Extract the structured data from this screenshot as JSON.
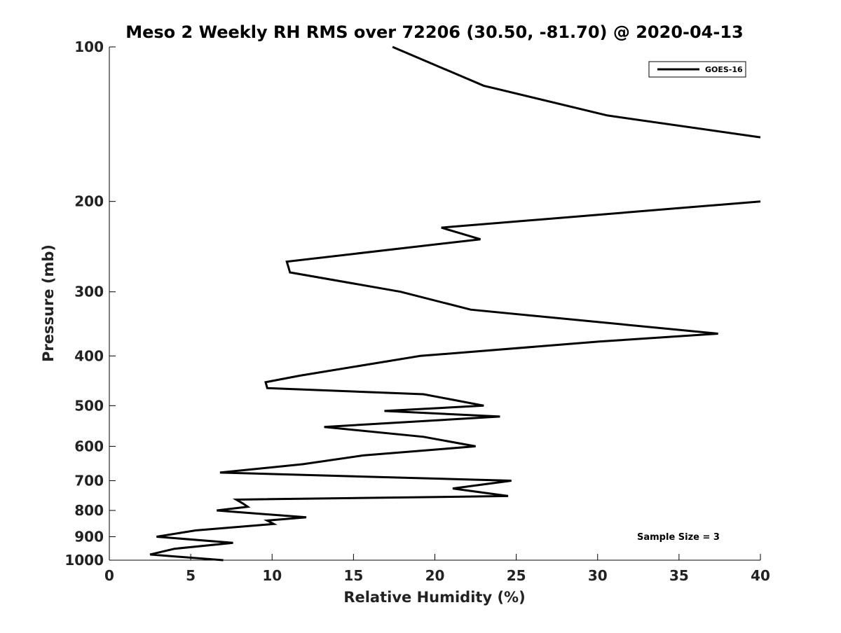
{
  "chart_data": {
    "type": "line",
    "title": "Meso 2 Weekly RH RMS over 72206 (30.50, -81.70) @ 2020-04-13",
    "xlabel": "Relative Humidity (%)",
    "ylabel": "Pressure (mb)",
    "xlim": [
      0,
      40
    ],
    "ylim": [
      1000,
      100
    ],
    "y_scale": "log",
    "y_reversed": true,
    "grid": false,
    "legend_position": "top-right",
    "xticks": [
      0,
      5,
      10,
      15,
      20,
      25,
      30,
      35,
      40
    ],
    "xtick_labels": [
      "0",
      "5",
      "10",
      "15",
      "20",
      "25",
      "30",
      "35",
      "40"
    ],
    "yticks": [
      100,
      200,
      300,
      400,
      500,
      600,
      700,
      800,
      900,
      1000
    ],
    "ytick_labels": [
      "100",
      "200",
      "300",
      "400",
      "500",
      "600",
      "700",
      "800",
      "900",
      "1000"
    ],
    "annotation": "Sample Size = 3",
    "series": [
      {
        "name": "GOES-16",
        "color": "#000000",
        "points": [
          [
            7.0,
            1000
          ],
          [
            2.5,
            975
          ],
          [
            4.0,
            950
          ],
          [
            7.6,
            925
          ],
          [
            2.9,
            900
          ],
          [
            5.3,
            875
          ],
          [
            10.1,
            850
          ],
          [
            9.7,
            837
          ],
          [
            12.1,
            825
          ],
          [
            6.6,
            800
          ],
          [
            8.5,
            787
          ],
          [
            8.2,
            775
          ],
          [
            7.8,
            762
          ],
          [
            24.5,
            750
          ],
          [
            21.1,
            725
          ],
          [
            24.7,
            700
          ],
          [
            6.8,
            675
          ],
          [
            11.9,
            650
          ],
          [
            15.6,
            625
          ],
          [
            22.5,
            600
          ],
          [
            19.3,
            575
          ],
          [
            13.2,
            550
          ],
          [
            24.0,
            525
          ],
          [
            16.9,
            512
          ],
          [
            23.0,
            500
          ],
          [
            19.3,
            475
          ],
          [
            9.7,
            462
          ],
          [
            9.6,
            450
          ],
          [
            11.7,
            437
          ],
          [
            19.1,
            400
          ],
          [
            30.1,
            375
          ],
          [
            37.4,
            362
          ],
          [
            22.2,
            325
          ],
          [
            17.9,
            300
          ],
          [
            11.1,
            275
          ],
          [
            10.9,
            262
          ],
          [
            22.8,
            237
          ],
          [
            20.4,
            225
          ],
          [
            40.0,
            200
          ]
        ]
      },
      {
        "name": "GOES-16",
        "color": "#000000",
        "points": [
          [
            40.0,
            150
          ],
          [
            30.6,
            136
          ],
          [
            23.0,
            119
          ],
          [
            17.4,
            100
          ]
        ]
      }
    ]
  }
}
